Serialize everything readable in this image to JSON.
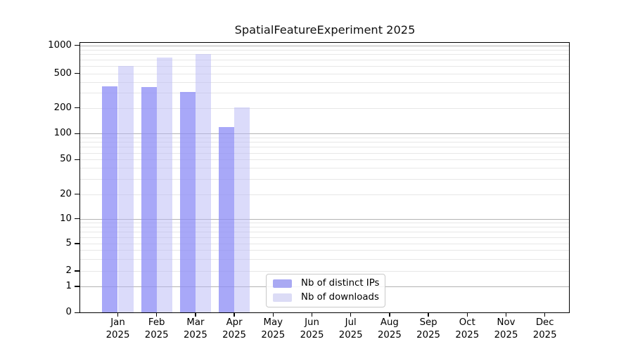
{
  "title": "SpatialFeatureExperiment 2025",
  "legend": {
    "items": [
      {
        "label": "Nb of distinct IPs"
      },
      {
        "label": "Nb of downloads"
      }
    ]
  },
  "colors": {
    "ips_bar": "#a8a8f8",
    "downloads_bar": "#dbdbfa",
    "ips_swatch": "#a9a9f3",
    "downloads_swatch": "#dcdcf6",
    "major_gridline": "#b3b3b3",
    "minor_gridline": "#e7e7e7"
  },
  "x_axis": {
    "months": [
      "Jan",
      "Feb",
      "Mar",
      "Apr",
      "May",
      "Jun",
      "Jul",
      "Aug",
      "Sep",
      "Oct",
      "Nov",
      "Dec"
    ],
    "year": "2025"
  },
  "y_axis": {
    "tick_labels": [
      "0",
      "1",
      "2",
      "5",
      "10",
      "20",
      "50",
      "100",
      "200",
      "500",
      "1000"
    ]
  },
  "chart_data": {
    "type": "bar",
    "title": "SpatialFeatureExperiment 2025",
    "categories": [
      "Jan 2025",
      "Feb 2025",
      "Mar 2025",
      "Apr 2025",
      "May 2025",
      "Jun 2025",
      "Jul 2025",
      "Aug 2025",
      "Sep 2025",
      "Oct 2025",
      "Nov 2025",
      "Dec 2025"
    ],
    "series": [
      {
        "name": "Nb of distinct IPs",
        "values": [
          355,
          350,
          305,
          120,
          0,
          0,
          0,
          0,
          0,
          0,
          0,
          0
        ]
      },
      {
        "name": "Nb of downloads",
        "values": [
          605,
          745,
          800,
          202,
          0,
          0,
          0,
          0,
          0,
          0,
          0,
          0
        ]
      }
    ],
    "yscale": "symlog",
    "yticks": [
      0,
      1,
      2,
      5,
      10,
      20,
      50,
      100,
      200,
      500,
      1000
    ],
    "ylim": [
      0,
      1000
    ],
    "grid": true,
    "legend_position": "lower center"
  }
}
